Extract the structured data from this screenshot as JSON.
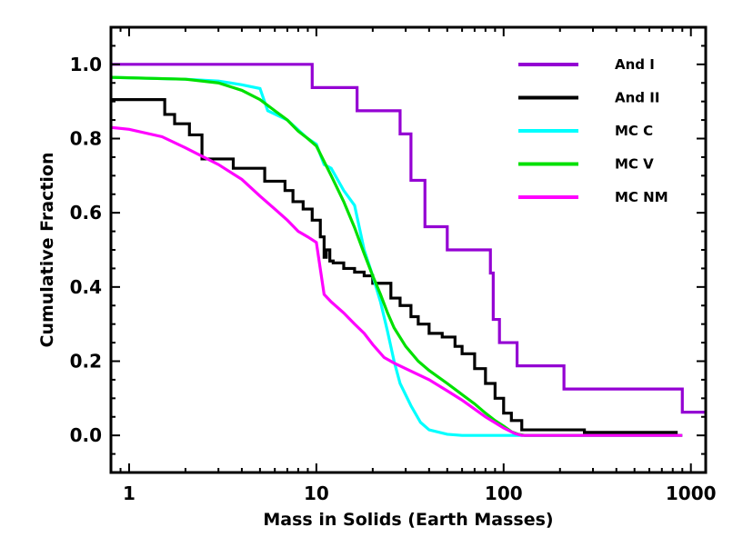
{
  "chart_data": {
    "type": "line",
    "title": "",
    "xlabel": "Mass in Solids (Earth Masses)",
    "ylabel": "Cumulative Fraction",
    "xscale": "log",
    "xlim": [
      0.8,
      1200
    ],
    "ylim": [
      -0.1,
      1.1
    ],
    "grid": false,
    "legend_position": "top-right",
    "x_ticks": [
      {
        "value": 1,
        "label": "1"
      },
      {
        "value": 10,
        "label": "10"
      },
      {
        "value": 100,
        "label": "100"
      },
      {
        "value": 1000,
        "label": "1000"
      }
    ],
    "y_ticks": [
      {
        "value": 0.0,
        "label": "0.0"
      },
      {
        "value": 0.2,
        "label": "0.2"
      },
      {
        "value": 0.4,
        "label": "0.4"
      },
      {
        "value": 0.6,
        "label": "0.6"
      },
      {
        "value": 0.8,
        "label": "0.8"
      },
      {
        "value": 1.0,
        "label": "1.0"
      }
    ],
    "series": [
      {
        "name": "And I",
        "color": "#9400d3",
        "step": true,
        "x": [
          0.8,
          9.5,
          16.5,
          28,
          32,
          38,
          50,
          85,
          88,
          95,
          118,
          210,
          900,
          1200
        ],
        "y": [
          1.0,
          0.9375,
          0.875,
          0.8125,
          0.6875,
          0.5625,
          0.5,
          0.4375,
          0.3125,
          0.25,
          0.1875,
          0.125,
          0.0625,
          0.0625
        ]
      },
      {
        "name": "And II",
        "color": "#000000",
        "step": true,
        "x": [
          0.8,
          1.55,
          1.75,
          2.1,
          2.45,
          3.6,
          5.3,
          6.8,
          7.5,
          8.5,
          9.5,
          10.5,
          11,
          11.3,
          11.8,
          12.3,
          14,
          16,
          18,
          20,
          25,
          28,
          32,
          35,
          40,
          47,
          55,
          60,
          70,
          80,
          90,
          100,
          110,
          125,
          270,
          850
        ],
        "y": [
          0.905,
          0.865,
          0.84,
          0.81,
          0.745,
          0.72,
          0.685,
          0.66,
          0.63,
          0.61,
          0.58,
          0.535,
          0.48,
          0.5,
          0.47,
          0.465,
          0.45,
          0.44,
          0.43,
          0.41,
          0.37,
          0.35,
          0.32,
          0.3,
          0.275,
          0.265,
          0.24,
          0.22,
          0.18,
          0.14,
          0.1,
          0.06,
          0.04,
          0.015,
          0.008,
          0.008
        ]
      },
      {
        "name": "MC C",
        "color": "#00ffff",
        "step": false,
        "x": [
          0.8,
          2,
          3,
          4,
          5,
          5.5,
          7,
          9,
          10,
          11,
          12,
          14,
          16,
          18,
          20,
          22,
          24,
          26,
          28,
          32,
          36,
          40,
          50,
          60,
          100,
          900
        ],
        "y": [
          0.965,
          0.96,
          0.955,
          0.945,
          0.935,
          0.875,
          0.85,
          0.8,
          0.785,
          0.73,
          0.72,
          0.66,
          0.62,
          0.5,
          0.43,
          0.36,
          0.28,
          0.2,
          0.14,
          0.08,
          0.035,
          0.015,
          0.003,
          0.0,
          0.0,
          0.0
        ]
      },
      {
        "name": "MC V",
        "color": "#00e000",
        "step": false,
        "x": [
          0.8,
          2,
          3,
          4,
          5,
          6,
          7,
          8,
          9,
          10,
          12,
          14,
          16,
          18,
          20,
          22,
          24,
          26,
          30,
          35,
          40,
          50,
          60,
          70,
          80,
          90,
          100,
          110,
          120,
          130,
          900
        ],
        "y": [
          0.965,
          0.96,
          0.95,
          0.93,
          0.905,
          0.875,
          0.85,
          0.82,
          0.8,
          0.78,
          0.7,
          0.63,
          0.56,
          0.49,
          0.43,
          0.38,
          0.33,
          0.29,
          0.24,
          0.2,
          0.175,
          0.14,
          0.11,
          0.085,
          0.06,
          0.04,
          0.025,
          0.01,
          0.003,
          0.0,
          0.0
        ]
      },
      {
        "name": "MC NM",
        "color": "#ff00ff",
        "step": false,
        "x": [
          0.8,
          1,
          1.5,
          2,
          3,
          4,
          5,
          6,
          7,
          8,
          9,
          10,
          11,
          12,
          14,
          16,
          18,
          20,
          23,
          26,
          30,
          40,
          50,
          60,
          80,
          100,
          115,
          125,
          900
        ],
        "y": [
          0.83,
          0.825,
          0.805,
          0.775,
          0.73,
          0.69,
          0.645,
          0.61,
          0.58,
          0.55,
          0.535,
          0.52,
          0.38,
          0.36,
          0.33,
          0.3,
          0.275,
          0.245,
          0.21,
          0.195,
          0.18,
          0.15,
          0.12,
          0.095,
          0.05,
          0.02,
          0.005,
          0.0,
          0.0
        ]
      }
    ]
  }
}
